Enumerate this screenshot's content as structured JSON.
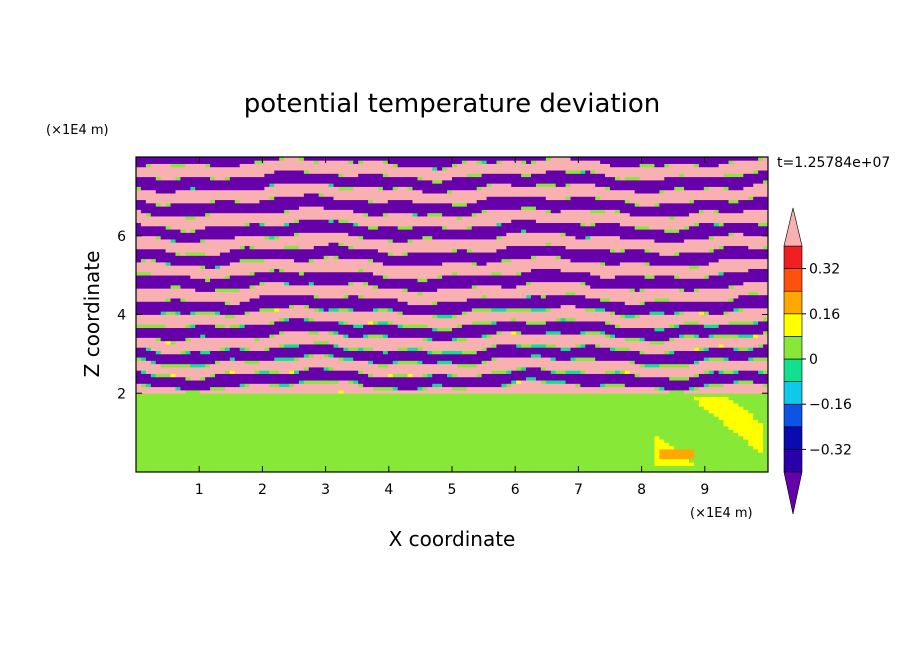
{
  "chart_data": {
    "type": "heatmap",
    "title": "potential temperature deviation",
    "xlabel": "X coordinate",
    "ylabel": "Z coordinate",
    "x_unit": "(×1E4 m)",
    "y_unit": "(×1E4 m)",
    "time_label": "t=1.25784e+07",
    "xlim": [
      0,
      10
    ],
    "ylim": [
      0,
      8
    ],
    "x_ticks": [
      "1",
      "2",
      "3",
      "4",
      "5",
      "6",
      "7",
      "8",
      "9"
    ],
    "y_ticks": [
      "2",
      "4",
      "6"
    ],
    "colorbar": {
      "tick_labels": [
        "0.32",
        "0.16",
        "0",
        "-0.16",
        "-0.32"
      ],
      "tick_values": [
        0.32,
        0.16,
        0,
        -0.16,
        -0.32
      ],
      "range": [
        -0.4,
        0.4
      ],
      "levels": [
        -0.4,
        -0.32,
        -0.24,
        -0.16,
        -0.08,
        0,
        0.08,
        0.16,
        0.24,
        0.32,
        0.4
      ],
      "colors": [
        "#6600aa",
        "#2a00a8",
        "#0a0ab0",
        "#0a55e6",
        "#10c8e8",
        "#10e090",
        "#88e838",
        "#ffff00",
        "#ffa800",
        "#ff5010",
        "#f02020",
        "#f8b0b0"
      ]
    },
    "regions": [
      {
        "z_range": [
          0,
          2
        ],
        "description_value": "near zero; values 0 to 0.08 with small 0.08-0.24 patches",
        "dominant_values": [
          0,
          0.08
        ]
      },
      {
        "z_range": [
          2,
          8
        ],
        "description_value": "alternating bands of about +0.4 and -0.4",
        "dominant_values": [
          0.4,
          -0.4
        ]
      }
    ]
  }
}
